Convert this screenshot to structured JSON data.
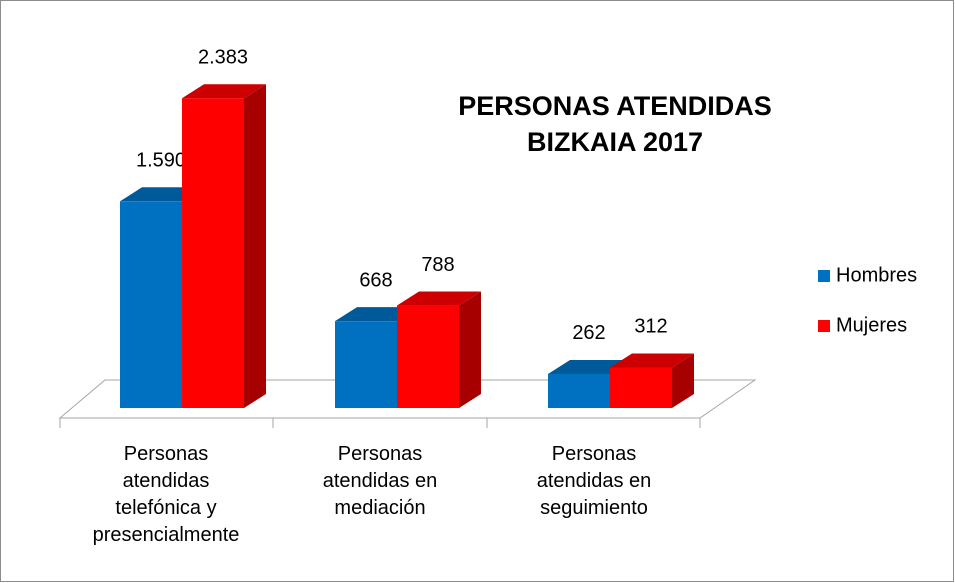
{
  "chart_data": {
    "type": "bar3d",
    "title": "PERSONAS ATENDIDAS BIZKAIA 2017",
    "categories": [
      "Personas atendidas telefónica y presencialmente",
      "Personas atendidas en mediación",
      "Personas atendidas en seguimiento"
    ],
    "series": [
      {
        "name": "Hombres",
        "color": "#0070c0",
        "values": [
          1590,
          668,
          262
        ],
        "value_labels": [
          "1.590",
          "668",
          "262"
        ]
      },
      {
        "name": "Mujeres",
        "color": "#ff0000",
        "values": [
          2383,
          788,
          312
        ],
        "value_labels": [
          "2.383",
          "788",
          "312"
        ]
      }
    ],
    "legend": "right"
  }
}
